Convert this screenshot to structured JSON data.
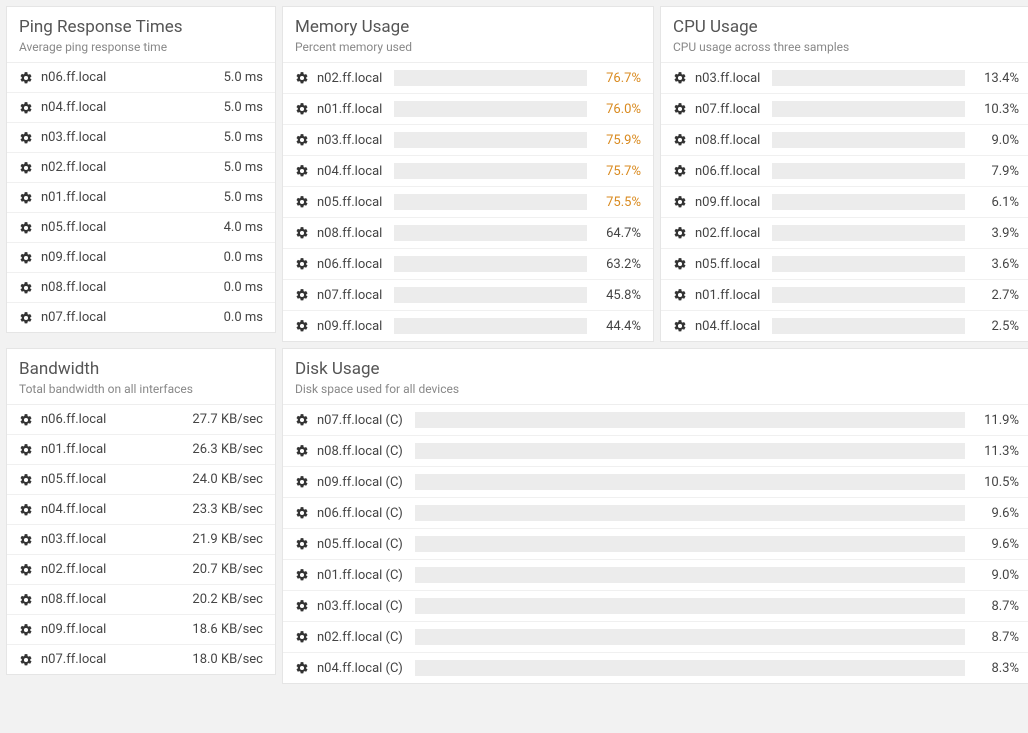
{
  "colors": {
    "bar_green": "#6aa84f",
    "bar_orange": "#f1a33c",
    "bar_bg": "#ececec",
    "text_orange": "#d98a1f",
    "text_normal": "#444444"
  },
  "ping": {
    "title": "Ping Response Times",
    "subtitle": "Average ping response time",
    "rows": [
      {
        "host": "n06.ff.local",
        "value": "5.0 ms"
      },
      {
        "host": "n04.ff.local",
        "value": "5.0 ms"
      },
      {
        "host": "n03.ff.local",
        "value": "5.0 ms"
      },
      {
        "host": "n02.ff.local",
        "value": "5.0 ms"
      },
      {
        "host": "n01.ff.local",
        "value": "5.0 ms"
      },
      {
        "host": "n05.ff.local",
        "value": "4.0 ms"
      },
      {
        "host": "n09.ff.local",
        "value": "0.0 ms"
      },
      {
        "host": "n08.ff.local",
        "value": "0.0 ms"
      },
      {
        "host": "n07.ff.local",
        "value": "0.0 ms"
      }
    ]
  },
  "memory": {
    "title": "Memory Usage",
    "subtitle": "Percent memory used",
    "rows": [
      {
        "host": "n02.ff.local",
        "pct": 76.7,
        "label": "76.7%",
        "color": "#f1a33c",
        "text_color": "#d98a1f"
      },
      {
        "host": "n01.ff.local",
        "pct": 76.0,
        "label": "76.0%",
        "color": "#f1a33c",
        "text_color": "#d98a1f"
      },
      {
        "host": "n03.ff.local",
        "pct": 75.9,
        "label": "75.9%",
        "color": "#f1a33c",
        "text_color": "#d98a1f"
      },
      {
        "host": "n04.ff.local",
        "pct": 75.7,
        "label": "75.7%",
        "color": "#f1a33c",
        "text_color": "#d98a1f"
      },
      {
        "host": "n05.ff.local",
        "pct": 75.5,
        "label": "75.5%",
        "color": "#f1a33c",
        "text_color": "#d98a1f"
      },
      {
        "host": "n08.ff.local",
        "pct": 64.7,
        "label": "64.7%",
        "color": "#6aa84f",
        "text_color": "#444444"
      },
      {
        "host": "n06.ff.local",
        "pct": 63.2,
        "label": "63.2%",
        "color": "#6aa84f",
        "text_color": "#444444"
      },
      {
        "host": "n07.ff.local",
        "pct": 45.8,
        "label": "45.8%",
        "color": "#6aa84f",
        "text_color": "#444444"
      },
      {
        "host": "n09.ff.local",
        "pct": 44.4,
        "label": "44.4%",
        "color": "#6aa84f",
        "text_color": "#444444"
      }
    ]
  },
  "cpu": {
    "title": "CPU Usage",
    "subtitle": "CPU usage across three samples",
    "rows": [
      {
        "host": "n03.ff.local",
        "pct": 13.4,
        "label": "13.4%",
        "color": "#6aa84f"
      },
      {
        "host": "n07.ff.local",
        "pct": 10.3,
        "label": "10.3%",
        "color": "#6aa84f"
      },
      {
        "host": "n08.ff.local",
        "pct": 9.0,
        "label": "9.0%",
        "color": "#6aa84f"
      },
      {
        "host": "n06.ff.local",
        "pct": 7.9,
        "label": "7.9%",
        "color": "#6aa84f"
      },
      {
        "host": "n09.ff.local",
        "pct": 6.1,
        "label": "6.1%",
        "color": "#6aa84f"
      },
      {
        "host": "n02.ff.local",
        "pct": 3.9,
        "label": "3.9%",
        "color": "#6aa84f"
      },
      {
        "host": "n05.ff.local",
        "pct": 3.6,
        "label": "3.6%",
        "color": "#6aa84f"
      },
      {
        "host": "n01.ff.local",
        "pct": 2.7,
        "label": "2.7%",
        "color": "#6aa84f"
      },
      {
        "host": "n04.ff.local",
        "pct": 2.5,
        "label": "2.5%",
        "color": "#6aa84f"
      }
    ]
  },
  "bandwidth": {
    "title": "Bandwidth",
    "subtitle": "Total bandwidth on all interfaces",
    "rows": [
      {
        "host": "n06.ff.local",
        "value": "27.7 KB/sec"
      },
      {
        "host": "n01.ff.local",
        "value": "26.3 KB/sec"
      },
      {
        "host": "n05.ff.local",
        "value": "24.0 KB/sec"
      },
      {
        "host": "n04.ff.local",
        "value": "23.3 KB/sec"
      },
      {
        "host": "n03.ff.local",
        "value": "21.9 KB/sec"
      },
      {
        "host": "n02.ff.local",
        "value": "20.7 KB/sec"
      },
      {
        "host": "n08.ff.local",
        "value": "20.2 KB/sec"
      },
      {
        "host": "n09.ff.local",
        "value": "18.6 KB/sec"
      },
      {
        "host": "n07.ff.local",
        "value": "18.0 KB/sec"
      }
    ]
  },
  "disk": {
    "title": "Disk Usage",
    "subtitle": "Disk space used for all devices",
    "rows": [
      {
        "host": "n07.ff.local (C)",
        "pct": 11.9,
        "label": "11.9%",
        "color": "#6aa84f"
      },
      {
        "host": "n08.ff.local (C)",
        "pct": 11.3,
        "label": "11.3%",
        "color": "#6aa84f"
      },
      {
        "host": "n09.ff.local (C)",
        "pct": 10.5,
        "label": "10.5%",
        "color": "#6aa84f"
      },
      {
        "host": "n06.ff.local (C)",
        "pct": 9.6,
        "label": "9.6%",
        "color": "#6aa84f"
      },
      {
        "host": "n05.ff.local (C)",
        "pct": 9.6,
        "label": "9.6%",
        "color": "#6aa84f"
      },
      {
        "host": "n01.ff.local (C)",
        "pct": 9.0,
        "label": "9.0%",
        "color": "#6aa84f"
      },
      {
        "host": "n03.ff.local (C)",
        "pct": 8.7,
        "label": "8.7%",
        "color": "#6aa84f"
      },
      {
        "host": "n02.ff.local (C)",
        "pct": 8.7,
        "label": "8.7%",
        "color": "#6aa84f"
      },
      {
        "host": "n04.ff.local (C)",
        "pct": 8.3,
        "label": "8.3%",
        "color": "#6aa84f"
      }
    ]
  }
}
